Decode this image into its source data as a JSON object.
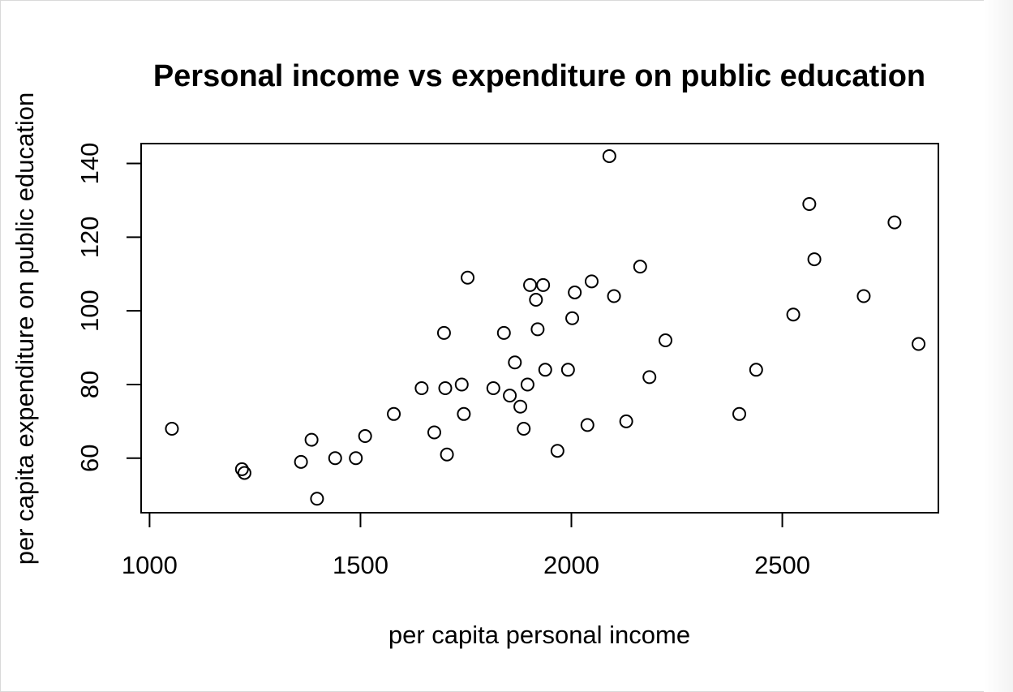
{
  "chart_data": {
    "type": "scatter",
    "title": "Personal income vs expenditure on public education",
    "xlabel": "per capita personal income",
    "ylabel": "per capita expenditure on public education",
    "xlim": [
      980,
      2870
    ],
    "ylim": [
      45.2,
      145.4
    ],
    "x_ticks": [
      1000,
      1500,
      2000,
      2500
    ],
    "y_ticks": [
      60,
      80,
      100,
      120,
      140
    ],
    "grid": false,
    "legend": "none",
    "points": [
      {
        "x": 1053,
        "y": 68
      },
      {
        "x": 1219,
        "y": 57
      },
      {
        "x": 1225,
        "y": 56
      },
      {
        "x": 1359,
        "y": 59
      },
      {
        "x": 1384,
        "y": 65
      },
      {
        "x": 1397,
        "y": 49
      },
      {
        "x": 1440,
        "y": 60
      },
      {
        "x": 1489,
        "y": 60
      },
      {
        "x": 1511,
        "y": 66
      },
      {
        "x": 1579,
        "y": 72
      },
      {
        "x": 1645,
        "y": 79
      },
      {
        "x": 1675,
        "y": 67
      },
      {
        "x": 1698,
        "y": 94
      },
      {
        "x": 1701,
        "y": 79
      },
      {
        "x": 1705,
        "y": 61
      },
      {
        "x": 1740,
        "y": 80
      },
      {
        "x": 1745,
        "y": 72
      },
      {
        "x": 1754,
        "y": 109
      },
      {
        "x": 1815,
        "y": 79
      },
      {
        "x": 1840,
        "y": 94
      },
      {
        "x": 1854,
        "y": 77
      },
      {
        "x": 1866,
        "y": 86
      },
      {
        "x": 1879,
        "y": 74
      },
      {
        "x": 1887,
        "y": 68
      },
      {
        "x": 1896,
        "y": 80
      },
      {
        "x": 1902,
        "y": 107
      },
      {
        "x": 1916,
        "y": 103
      },
      {
        "x": 1920,
        "y": 95
      },
      {
        "x": 1933,
        "y": 107
      },
      {
        "x": 1938,
        "y": 84
      },
      {
        "x": 1967,
        "y": 62
      },
      {
        "x": 1992,
        "y": 84
      },
      {
        "x": 2002,
        "y": 98
      },
      {
        "x": 2008,
        "y": 105
      },
      {
        "x": 2038,
        "y": 69
      },
      {
        "x": 2048,
        "y": 108
      },
      {
        "x": 2090,
        "y": 142
      },
      {
        "x": 2101,
        "y": 104
      },
      {
        "x": 2130,
        "y": 70
      },
      {
        "x": 2163,
        "y": 112
      },
      {
        "x": 2185,
        "y": 82
      },
      {
        "x": 2223,
        "y": 92
      },
      {
        "x": 2398,
        "y": 72
      },
      {
        "x": 2438,
        "y": 84
      },
      {
        "x": 2526,
        "y": 99
      },
      {
        "x": 2564,
        "y": 129
      },
      {
        "x": 2576,
        "y": 114
      },
      {
        "x": 2693,
        "y": 104
      },
      {
        "x": 2766,
        "y": 124
      },
      {
        "x": 2823,
        "y": 91
      }
    ]
  }
}
